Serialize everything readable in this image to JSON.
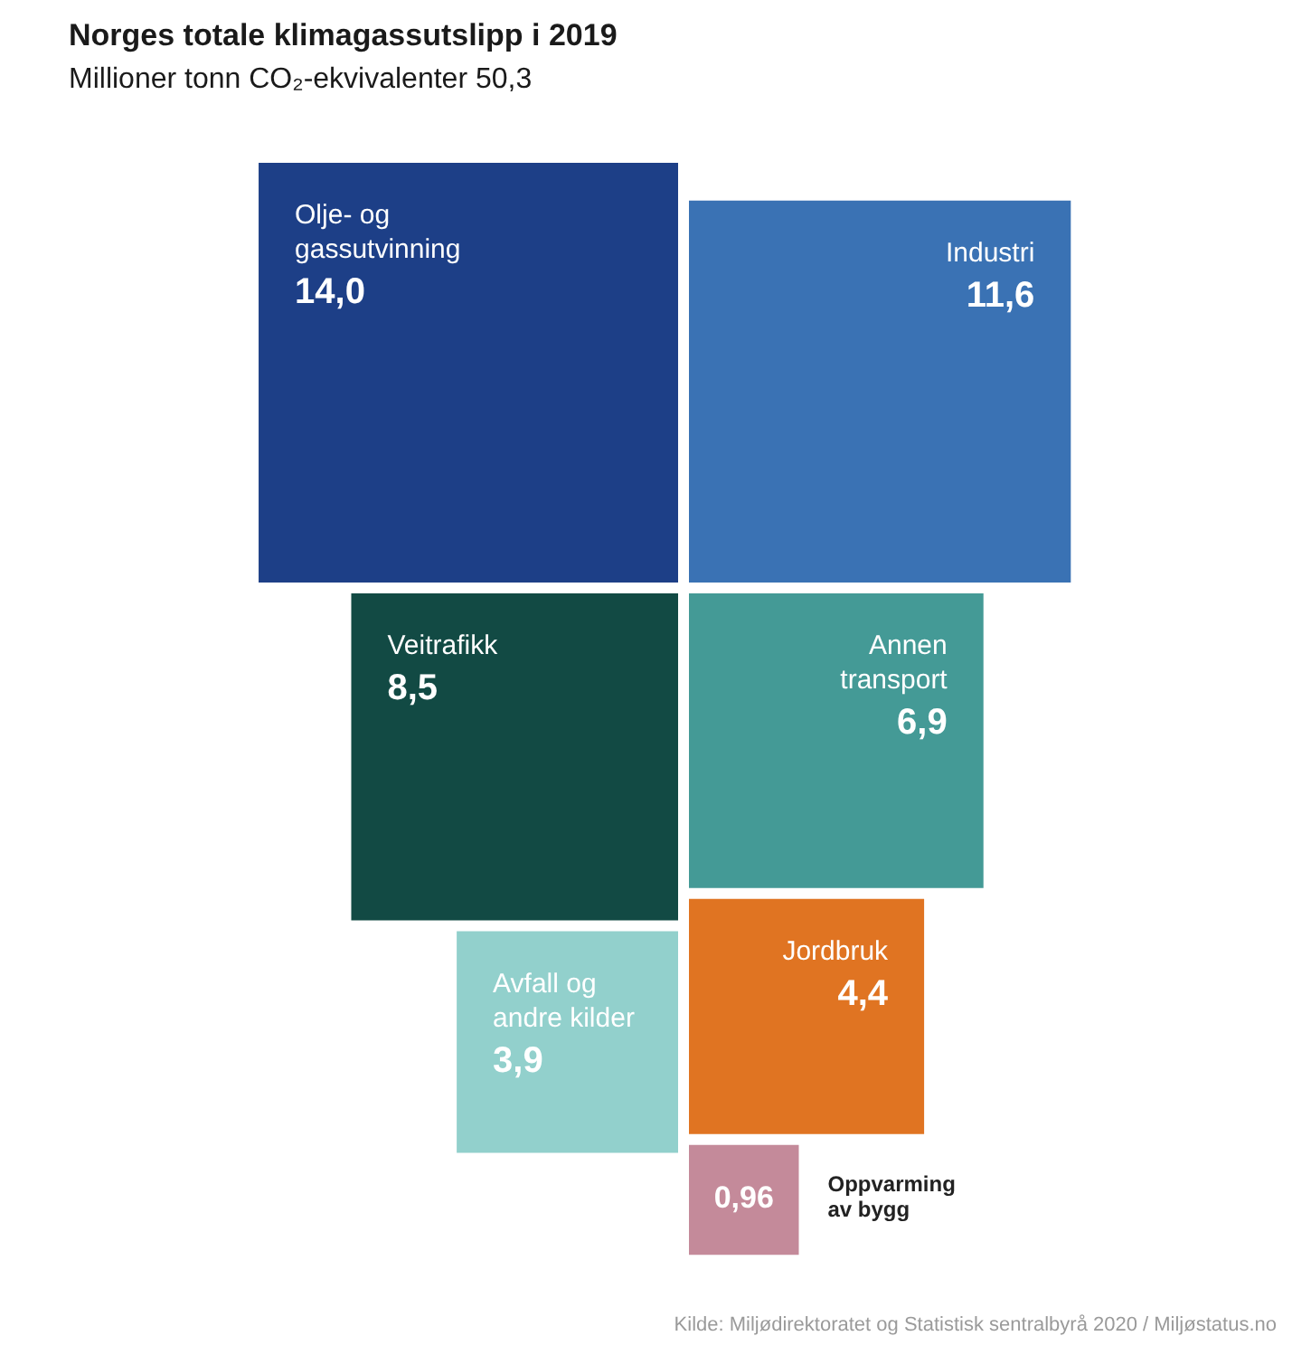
{
  "chart_data": {
    "type": "other",
    "title": "Norges totale klimagassutslipp i 2019",
    "subtitle": "Millioner tonn CO₂-ekvivalenter 50,3",
    "categories": [
      "Olje- og gassutvinning",
      "Industri",
      "Veitrafikk",
      "Annen transport",
      "Avfall og andre kilder",
      "Jordbruk",
      "Oppvarming av bygg"
    ],
    "values": [
      14.0,
      11.6,
      8.5,
      6.9,
      3.9,
      4.4,
      0.96
    ],
    "value_labels": [
      "14,0",
      "11,6",
      "8,5",
      "6,9",
      "3,9",
      "4,4",
      "0,96"
    ],
    "colors": [
      "#1d3f87",
      "#3a72b4",
      "#124a44",
      "#449a96",
      "#92d0cc",
      "#e07422",
      "#c48a9a"
    ],
    "annotations": [
      "Kilde: Miljødirektoratet og Statistisk sentralbyrå 2020 / Miljøstatus.no"
    ]
  }
}
